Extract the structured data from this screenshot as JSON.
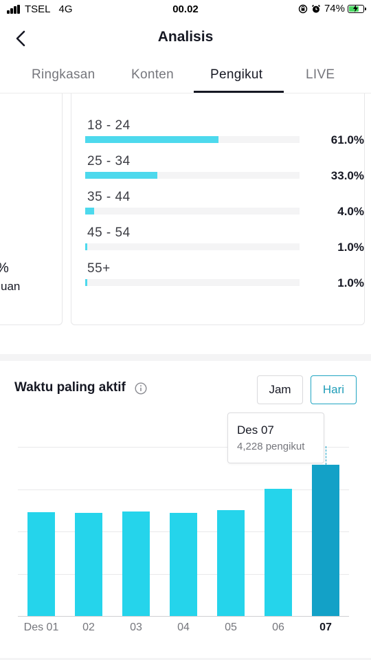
{
  "status_bar": {
    "carrier": "TSEL",
    "network": "4G",
    "time": "00.02",
    "battery_percent": "74%",
    "battery_level": 0.74
  },
  "header": {
    "title": "Analisis"
  },
  "tabs": [
    {
      "label": "Ringkasan",
      "active": false
    },
    {
      "label": "Konten",
      "active": false
    },
    {
      "label": "Pengikut",
      "active": true
    },
    {
      "label": "LIVE",
      "active": false
    }
  ],
  "left_card": {
    "value_fragment": "%",
    "label_fragment": "uan"
  },
  "age_groups": [
    {
      "label": "18 - 24",
      "percent": "61.0%",
      "value": 61.0
    },
    {
      "label": "25 - 34",
      "percent": "33.0%",
      "value": 33.0
    },
    {
      "label": "35 - 44",
      "percent": "4.0%",
      "value": 4.0
    },
    {
      "label": "45 - 54",
      "percent": "1.0%",
      "value": 1.0
    },
    {
      "label": "55+",
      "percent": "1.0%",
      "value": 1.0
    }
  ],
  "active_time": {
    "title": "Waktu paling aktif",
    "toggle": {
      "jam_label": "Jam",
      "hari_label": "Hari",
      "selected": "Hari"
    },
    "tooltip": {
      "title": "Des 07",
      "subtitle": "4,228 pengikut"
    }
  },
  "chart_data": {
    "type": "bar",
    "categories": [
      "Des 01",
      "02",
      "03",
      "04",
      "05",
      "06",
      "07"
    ],
    "values": [
      2900,
      2880,
      2910,
      2880,
      2960,
      3550,
      4228
    ],
    "highlighted_index": 6,
    "ylim": [
      0,
      5000
    ],
    "grid": true,
    "colors": {
      "bar": "#25d4eb",
      "highlight": "#13a1c7"
    }
  },
  "colors": {
    "accent": "#1fa5c2",
    "age_bar": "#4dd9ed"
  },
  "icons": {
    "back": "chevron-left-icon",
    "info": "info-icon"
  }
}
